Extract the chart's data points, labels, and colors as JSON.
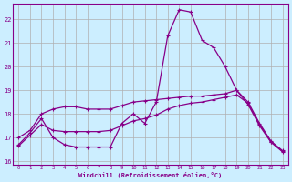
{
  "xlabel": "Windchill (Refroidissement éolien,°C)",
  "bg_color": "#cceeff",
  "grid_color": "#b0b0b0",
  "line_color": "#880088",
  "xlim": [
    -0.5,
    23.5
  ],
  "ylim": [
    15.85,
    22.65
  ],
  "yticks": [
    16,
    17,
    18,
    19,
    20,
    21,
    22
  ],
  "xticks": [
    0,
    1,
    2,
    3,
    4,
    5,
    6,
    7,
    8,
    9,
    10,
    11,
    12,
    13,
    14,
    15,
    16,
    17,
    18,
    19,
    20,
    21,
    22,
    23
  ],
  "series1_x": [
    0,
    1,
    2,
    3,
    4,
    5,
    6,
    7,
    8,
    9,
    10,
    11,
    12,
    13,
    14,
    15,
    16,
    17,
    18,
    19,
    20,
    21,
    22,
    23
  ],
  "series1_y": [
    16.7,
    17.2,
    17.8,
    17.0,
    16.7,
    16.6,
    16.6,
    16.6,
    16.6,
    17.6,
    18.0,
    17.6,
    18.5,
    21.3,
    22.4,
    22.3,
    21.1,
    20.8,
    20.0,
    19.0,
    18.4,
    17.5,
    16.8,
    16.4
  ],
  "series2_x": [
    0,
    1,
    2,
    3,
    4,
    5,
    6,
    7,
    8,
    9,
    10,
    11,
    12,
    13,
    14,
    15,
    16,
    17,
    18,
    19,
    20,
    21,
    22,
    23
  ],
  "series2_y": [
    17.0,
    17.3,
    18.0,
    18.2,
    18.3,
    18.3,
    18.2,
    18.2,
    18.2,
    18.35,
    18.5,
    18.55,
    18.6,
    18.65,
    18.7,
    18.75,
    18.75,
    18.8,
    18.85,
    19.0,
    18.5,
    17.6,
    16.85,
    16.45
  ],
  "series3_x": [
    0,
    1,
    2,
    3,
    4,
    5,
    6,
    7,
    8,
    9,
    10,
    11,
    12,
    13,
    14,
    15,
    16,
    17,
    18,
    19,
    20,
    21,
    22,
    23
  ],
  "series3_y": [
    16.65,
    17.1,
    17.55,
    17.3,
    17.25,
    17.25,
    17.25,
    17.25,
    17.3,
    17.5,
    17.7,
    17.8,
    17.95,
    18.2,
    18.35,
    18.45,
    18.5,
    18.6,
    18.7,
    18.8,
    18.45,
    17.55,
    16.82,
    16.42
  ]
}
